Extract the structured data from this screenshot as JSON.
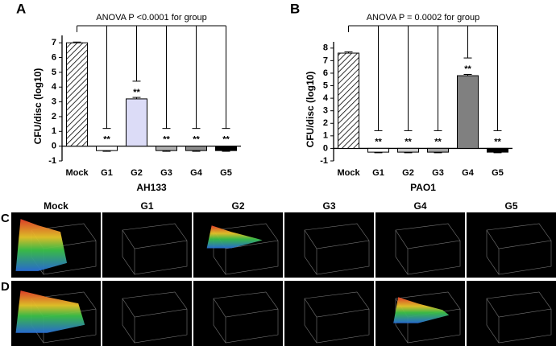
{
  "chart_data": [
    {
      "type": "bar",
      "panel": "A",
      "title": "ANOVA P <0.0001 for group",
      "ylabel": "CFU/disc (log10)",
      "xlabel": "AH133",
      "categories": [
        "Mock",
        "G1",
        "G2",
        "G3",
        "G4",
        "G5"
      ],
      "values": [
        7.0,
        -0.3,
        3.2,
        -0.3,
        -0.3,
        -0.3
      ],
      "errors": [
        0.05,
        0.05,
        0.1,
        0.05,
        0.05,
        0.05
      ],
      "colors": [
        "#ffffff",
        "#ffffff",
        "#dcdcf7",
        "#b0b0b0",
        "#8c8c8c",
        "#000000"
      ],
      "hatched_categories": [
        "Mock"
      ],
      "annotations": [
        null,
        "**",
        "**",
        "**",
        "**",
        "**"
      ],
      "ylim": [
        -1,
        7.5
      ],
      "yticks": [
        -1,
        0,
        1,
        2,
        3,
        4,
        5,
        6,
        7
      ]
    },
    {
      "type": "bar",
      "panel": "B",
      "title": "ANOVA P = 0.0002 for group",
      "ylabel": "CFU/disc (log10)",
      "xlabel": "PAO1",
      "categories": [
        "Mock",
        "G1",
        "G2",
        "G3",
        "G4",
        "G5"
      ],
      "values": [
        7.6,
        -0.3,
        -0.3,
        -0.3,
        5.8,
        -0.3
      ],
      "errors": [
        0.1,
        0.05,
        0.05,
        0.05,
        0.1,
        0.05
      ],
      "colors": [
        "#ffffff",
        "#ffffff",
        "#d0d0d0",
        "#a8a8a8",
        "#808080",
        "#000000"
      ],
      "hatched_categories": [
        "Mock"
      ],
      "annotations": [
        null,
        "**",
        "**",
        "**",
        "**",
        "**"
      ],
      "ylim": [
        -1,
        8.5
      ],
      "yticks": [
        -1,
        0,
        1,
        2,
        3,
        4,
        5,
        6,
        7,
        8
      ]
    }
  ],
  "image_grid": {
    "columns": [
      "Mock",
      "G1",
      "G2",
      "G3",
      "G4",
      "G5"
    ],
    "rows": [
      "C",
      "D"
    ]
  }
}
